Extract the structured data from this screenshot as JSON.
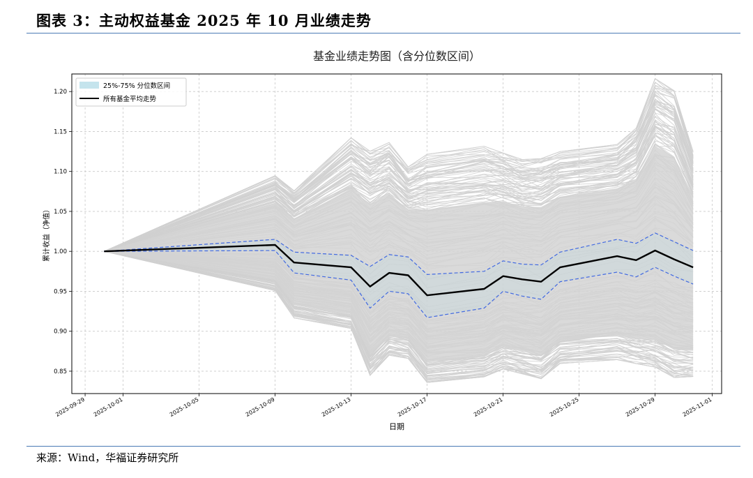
{
  "figure": {
    "title": "图表 3：主动权益基金 2025 年 10 月业绩走势",
    "source": "来源：Wind，华福证券研究所"
  },
  "chart_data": {
    "type": "line",
    "title": "基金业绩走势图（含分位数区间）",
    "xlabel": "日期",
    "ylabel": "累计收益（净值）",
    "xlim": [
      "2025-09-28.3",
      "2025-11-01.5"
    ],
    "ylim": [
      0.822,
      1.222
    ],
    "yticks": [
      0.85,
      0.9,
      0.95,
      1.0,
      1.05,
      1.1,
      1.15,
      1.2
    ],
    "ytick_labels": [
      "0.85",
      "0.90",
      "0.95",
      "1.00",
      "1.05",
      "1.10",
      "1.15",
      "1.20"
    ],
    "xticks": [
      "2025-09-29",
      "2025-10-01",
      "2025-10-05",
      "2025-10-09",
      "2025-10-13",
      "2025-10-17",
      "2025-10-21",
      "2025-10-25",
      "2025-10-29",
      "2025-11-01"
    ],
    "grid": true,
    "legend": {
      "placement": "top-left",
      "entries": [
        {
          "label": "25%-75% 分位数区间",
          "style": "fill",
          "color": "#add8e6"
        },
        {
          "label": "所有基金平均走势",
          "style": "line",
          "color": "#000000"
        }
      ]
    },
    "x": [
      "2025-09-30",
      "2025-10-09",
      "2025-10-10",
      "2025-10-13",
      "2025-10-14",
      "2025-10-15",
      "2025-10-16",
      "2025-10-17",
      "2025-10-20",
      "2025-10-21",
      "2025-10-22",
      "2025-10-23",
      "2025-10-24",
      "2025-10-27",
      "2025-10-28",
      "2025-10-29",
      "2025-10-30",
      "2025-10-31"
    ],
    "series": [
      {
        "name": "所有基金平均走势",
        "color": "#000000",
        "values": [
          1.0,
          1.008,
          0.986,
          0.98,
          0.956,
          0.973,
          0.97,
          0.945,
          0.953,
          0.969,
          0.965,
          0.962,
          0.98,
          0.994,
          0.989,
          1.001,
          0.99,
          0.98
        ]
      },
      {
        "name": "75%分位",
        "color": "#4169e1",
        "style": "dashed",
        "values": [
          1.0,
          1.015,
          0.999,
          0.995,
          0.981,
          0.996,
          0.993,
          0.971,
          0.975,
          0.988,
          0.984,
          0.983,
          0.999,
          1.015,
          1.01,
          1.023,
          1.012,
          1.001
        ]
      },
      {
        "name": "25%分位",
        "color": "#4169e1",
        "style": "dashed",
        "values": [
          1.0,
          1.001,
          0.973,
          0.964,
          0.929,
          0.95,
          0.947,
          0.917,
          0.929,
          0.95,
          0.944,
          0.94,
          0.962,
          0.974,
          0.968,
          0.98,
          0.969,
          0.959
        ]
      },
      {
        "name": "个基上沿",
        "color": "#d3d3d3",
        "values": [
          1.0,
          1.093,
          1.074,
          1.139,
          1.122,
          1.133,
          1.103,
          1.118,
          1.128,
          1.12,
          1.112,
          1.113,
          1.122,
          1.131,
          1.151,
          1.212,
          1.197,
          1.122
        ]
      },
      {
        "name": "个基下沿",
        "color": "#d3d3d3",
        "values": [
          1.0,
          0.952,
          0.918,
          0.905,
          0.847,
          0.872,
          0.868,
          0.838,
          0.845,
          0.855,
          0.849,
          0.843,
          0.862,
          0.867,
          0.862,
          0.858,
          0.845,
          0.846
        ]
      }
    ]
  }
}
